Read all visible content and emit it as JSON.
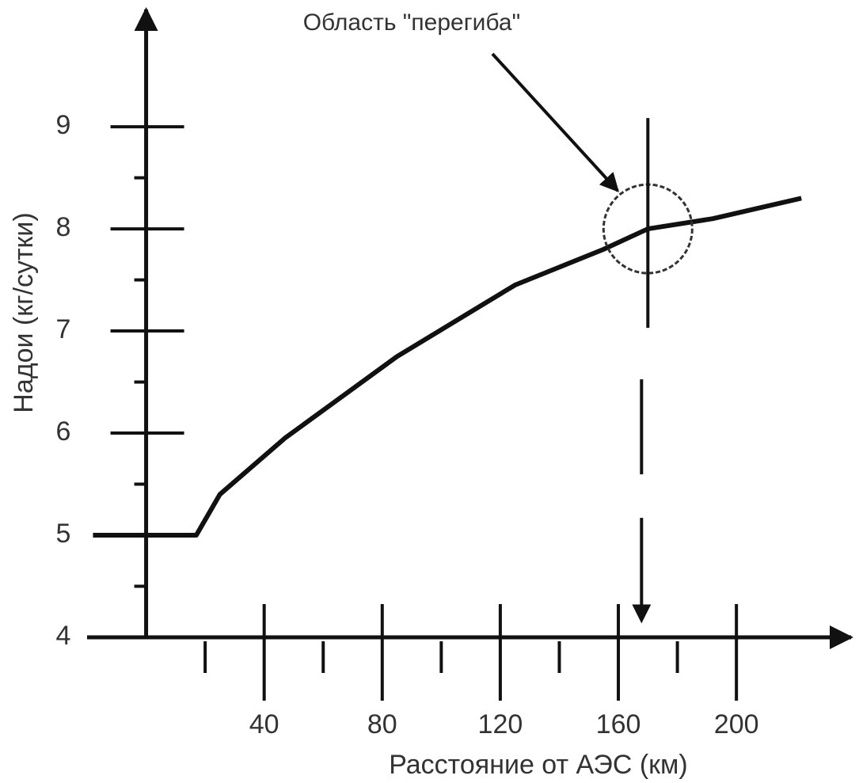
{
  "chart_data": {
    "type": "line",
    "x_label": "Расстояние от АЭС (км)",
    "y_label": "Надои (кг/сутки)",
    "x": [
      -18,
      17,
      25,
      47,
      85,
      125,
      155,
      170,
      192,
      222
    ],
    "series": [
      {
        "color": "#111111",
        "values": [
          5,
          5,
          5.4,
          5.95,
          6.75,
          7.45,
          7.8,
          8.0,
          8.1,
          8.3
        ]
      }
    ],
    "xlim": [
      -20,
      230
    ],
    "ylim": [
      4,
      9.9
    ],
    "xticks": [
      40,
      80,
      120,
      160,
      200
    ],
    "xticks_minor": [
      20,
      60,
      100,
      140,
      180
    ],
    "yticks": [
      4,
      5,
      6,
      7,
      8,
      9
    ],
    "yticks_minor": [
      4.5,
      5.5,
      6.5,
      7.5,
      8.5
    ],
    "annotation": {
      "text": "Область \"перегиба\"",
      "x": 170,
      "y": 8.0
    }
  }
}
